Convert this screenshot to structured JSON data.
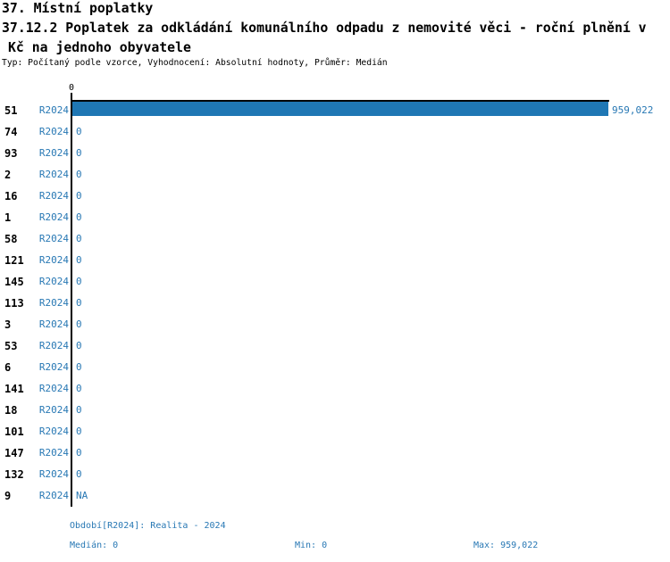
{
  "header": {
    "line1": "37. Místní poplatky",
    "line2": "37.12.2 Poplatek za odkládání komunálního odpadu z nemovité věci - roční plnění v",
    "line3": "Kč na jednoho obyvatele",
    "meta": "Typ: Počítaný podle vzorce, Vyhodnocení: Absolutní hodnoty, Průměr: Medián"
  },
  "chart_data": {
    "type": "bar",
    "orientation": "horizontal",
    "title": "37.12.2 Poplatek za odkládání komunálního odpadu z nemovité věci - roční plnění v Kč na jednoho obyvatele",
    "series_label": "R2024",
    "axis_tick_label": "0",
    "xlim": [
      0,
      959022
    ],
    "grid": false,
    "legend": false,
    "categories": [
      "51",
      "74",
      "93",
      "2",
      "16",
      "1",
      "58",
      "121",
      "145",
      "113",
      "3",
      "53",
      "6",
      "141",
      "18",
      "101",
      "147",
      "132",
      "9"
    ],
    "values": [
      959022,
      0,
      0,
      0,
      0,
      0,
      0,
      0,
      0,
      0,
      0,
      0,
      0,
      0,
      0,
      0,
      0,
      0,
      null
    ],
    "value_labels": [
      "959,022",
      "0",
      "0",
      "0",
      "0",
      "0",
      "0",
      "0",
      "0",
      "0",
      "0",
      "0",
      "0",
      "0",
      "0",
      "0",
      "0",
      "0",
      "NA"
    ],
    "bar_color": "#1f77b4"
  },
  "footer": {
    "period": "Období[R2024]: Realita - 2024",
    "median": "Medián: 0",
    "min": "Min: 0",
    "max": "Max: 959,022"
  },
  "colors": {
    "accent_blue": "#1f77b4",
    "text_blue": "#2878b4",
    "text_black": "#000000",
    "background": "#ffffff"
  }
}
